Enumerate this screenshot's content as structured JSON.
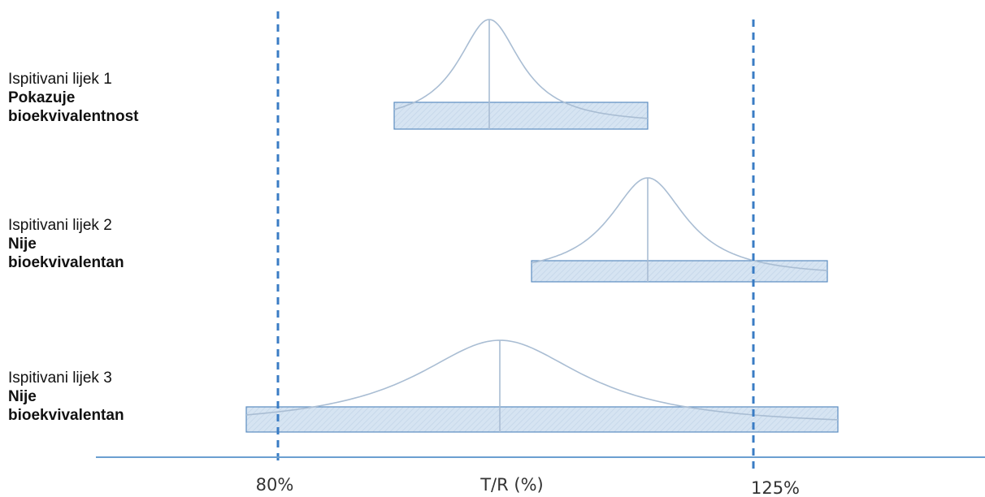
{
  "items": [
    {
      "name": "Ispitivani lijek 1",
      "verdict_line1": "Pokazuje",
      "verdict_line2": "bioekvivalentnost",
      "estimate": 100,
      "ci": [
        91,
        115
      ]
    },
    {
      "name": "Ispitivani lijek 2",
      "verdict_line1": "Nije",
      "verdict_line2": "bioekvivalentan",
      "estimate": 115,
      "ci": [
        104,
        132
      ]
    },
    {
      "name": "Ispitivani lijek 3",
      "verdict_line1": "Nije",
      "verdict_line2": "bioekvivalentan",
      "estimate": 101,
      "ci": [
        77,
        133
      ]
    }
  ],
  "axis": {
    "label": "T/R (%)",
    "lower_limit": 80,
    "upper_limit": 125,
    "lower_label": "80%",
    "upper_label": "125%"
  },
  "colors": {
    "limit_line": "#3a7cc4",
    "axis_line": "#6b9fd0",
    "box_fill": "#d6e4f2",
    "box_stroke": "#5a8cc0",
    "curve": "#a9bdd3",
    "hatch": "#b8cde3"
  }
}
